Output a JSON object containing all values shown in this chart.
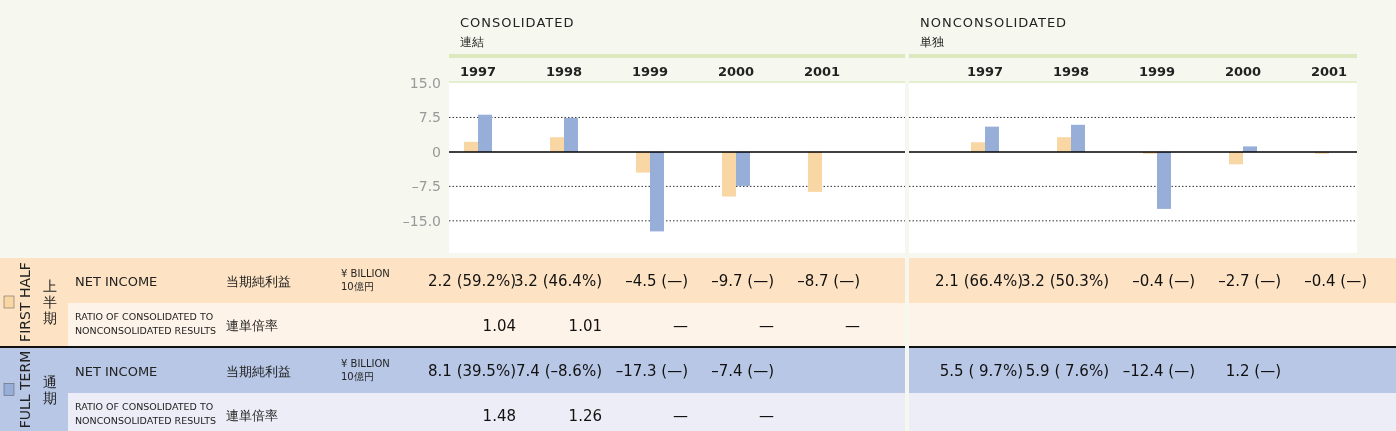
{
  "chart_data": [
    {
      "type": "bar",
      "title": "CONSOLIDATED",
      "subtitle": "連結",
      "categories": [
        "1997",
        "1998",
        "1999",
        "2000",
        "2001"
      ],
      "series": [
        {
          "name": "FIRST HALF",
          "color": "#f9d7a5",
          "values": [
            2.2,
            3.2,
            -4.5,
            -9.7,
            -8.7
          ],
          "value_labels": [
            "2.2 (59.2%)",
            "3.2 (46.4%)",
            "–4.5 (—)",
            "–9.7 (—)",
            "–8.7 (—)"
          ]
        },
        {
          "name": "FULL TERM",
          "color": "#97aed9",
          "values": [
            8.1,
            7.4,
            -17.3,
            -7.4,
            null
          ],
          "value_labels": [
            "8.1 (39.5%)",
            "7.4 (–8.6%)",
            "–17.3 (—)",
            "–7.4 (—)",
            null
          ]
        }
      ],
      "ylim": [
        -22,
        15
      ],
      "yticks": [
        {
          "value": -15,
          "label": "–15.0"
        },
        {
          "value": -7.5,
          "label": "–7.5"
        },
        0,
        7.5,
        {
          "value": 15,
          "label": "15.0"
        }
      ],
      "grid": "y",
      "legend": "left",
      "annotations": [
        "上半期",
        "NET INCOME",
        "当期純利益",
        "¥ BILLION",
        "10億円",
        "RATIO OF CONSOLIDATED TO NONCONSOLIDATED RESULTS",
        "連単倍率",
        "1.04",
        "1.01",
        "—",
        "—",
        "—",
        "通期",
        "NET INCOME",
        "当期純利益",
        "¥ BILLION",
        "10億円",
        "RATIO OF CONSOLIDATED TO NONCONSOLIDATED RESULTS",
        "連単倍率",
        "1.48",
        "1.26",
        "—",
        "—"
      ]
    },
    {
      "type": "bar",
      "title": "NONCONSOLIDATED",
      "subtitle": "単独",
      "categories": [
        "1997",
        "1998",
        "1999",
        "2000",
        "2001"
      ],
      "series": [
        {
          "color": "#f9d7a5",
          "values": [
            2.1,
            3.2,
            -0.4,
            -2.7,
            -0.4
          ],
          "value_labels": [
            "2.1 (66.4%)",
            "3.2 (50.3%)",
            "–0.4 (—)",
            "–2.7 (—)",
            "–0.4 (—)"
          ]
        },
        {
          "color": "#97aed9",
          "values": [
            5.5,
            5.9,
            -12.4,
            1.2,
            null
          ],
          "value_labels": [
            "5.5 ( 9.7%)",
            "5.9 ( 7.6%)",
            "–12.4 (—)",
            "1.2 (—)",
            null
          ]
        }
      ],
      "ylim": [
        -22,
        15
      ],
      "yticks": [
        -15,
        -7.5,
        0,
        7.5,
        15
      ],
      "grid": "y",
      "tick_labels": "x"
    }
  ]
}
